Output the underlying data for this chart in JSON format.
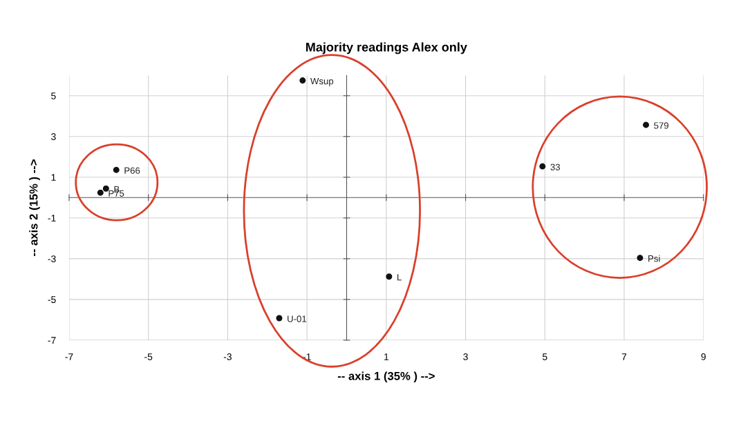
{
  "chart_data": {
    "type": "scatter",
    "title": "Majority readings Alex only",
    "xlabel": "-- axis 1 (35% ) -->",
    "ylabel": "-- axis 2 (15% ) -->",
    "x": [
      -1.11,
      7.55,
      4.94,
      7.4,
      1.07,
      -1.7,
      -5.81,
      -6.07,
      -6.21
    ],
    "values": [
      5.75,
      3.57,
      1.53,
      -2.96,
      -3.88,
      -5.92,
      1.36,
      0.44,
      0.24
    ],
    "color": "#111111",
    "marker": "circle",
    "annotations": [
      {
        "text": "Wsup",
        "x": -1.11,
        "y": 5.75
      },
      {
        "text": "579",
        "x": 7.55,
        "y": 3.57
      },
      {
        "text": "33",
        "x": 4.94,
        "y": 1.53
      },
      {
        "text": "Psi",
        "x": 7.4,
        "y": -2.96
      },
      {
        "text": "L",
        "x": 1.07,
        "y": -3.88
      },
      {
        "text": "U-01",
        "x": -1.7,
        "y": -5.92
      },
      {
        "text": "P66",
        "x": -5.81,
        "y": 1.36
      },
      {
        "text": "B",
        "x": -6.07,
        "y": 0.44
      },
      {
        "text": "P75",
        "x": -6.21,
        "y": 0.24
      }
    ],
    "xlim": [
      -7,
      9
    ],
    "xticks": [
      -7,
      -5,
      -3,
      -1,
      1,
      3,
      5,
      7,
      9
    ],
    "ylim": [
      -7,
      6
    ],
    "yticks": [
      -7,
      -5,
      -3,
      -1,
      1,
      3,
      5
    ],
    "grid": true
  }
}
